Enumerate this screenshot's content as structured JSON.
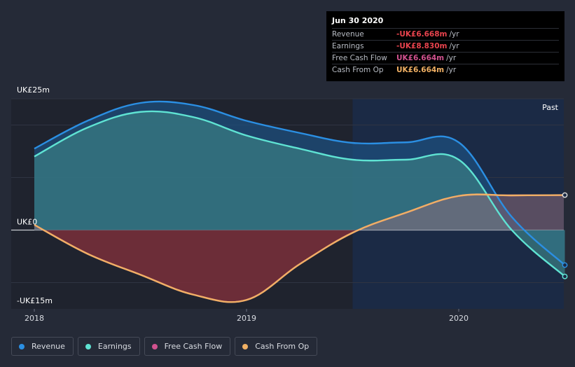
{
  "chart_data": {
    "type": "area",
    "title": "",
    "xlabel": "",
    "ylabel": "",
    "ylim": [
      -15,
      25
    ],
    "y_tick_labels": [
      {
        "value": 25,
        "label": "UK£25m"
      },
      {
        "value": 0,
        "label": "UK£0"
      },
      {
        "value": -15,
        "label": "-UK£15m"
      }
    ],
    "x_tick_labels": [
      {
        "value": 2018.0,
        "label": "2018"
      },
      {
        "value": 2019.0,
        "label": "2019"
      },
      {
        "value": 2020.0,
        "label": "2020"
      }
    ],
    "xlim": [
      2017.9,
      2020.5
    ],
    "past_label": "Past",
    "past_start": 2019.5,
    "series": [
      {
        "name": "Revenue",
        "color": "#2b8fe3",
        "points": [
          [
            2018.0,
            15.5
          ],
          [
            2018.25,
            20.8
          ],
          [
            2018.5,
            24.2
          ],
          [
            2018.75,
            23.8
          ],
          [
            2019.0,
            20.8
          ],
          [
            2019.25,
            18.5
          ],
          [
            2019.5,
            16.6
          ],
          [
            2019.75,
            16.7
          ],
          [
            2020.0,
            16.7
          ],
          [
            2020.25,
            2.5
          ],
          [
            2020.5,
            -6.668
          ]
        ]
      },
      {
        "name": "Earnings",
        "color": "#5fe3d3",
        "points": [
          [
            2018.0,
            14.0
          ],
          [
            2018.25,
            19.5
          ],
          [
            2018.5,
            22.5
          ],
          [
            2018.75,
            21.5
          ],
          [
            2019.0,
            18.0
          ],
          [
            2019.25,
            15.5
          ],
          [
            2019.5,
            13.4
          ],
          [
            2019.75,
            13.4
          ],
          [
            2020.0,
            13.4
          ],
          [
            2020.25,
            0.0
          ],
          [
            2020.5,
            -8.83
          ]
        ]
      },
      {
        "name": "Free Cash Flow",
        "color": "#d1528f",
        "points": [
          [
            2018.0,
            1.0
          ],
          [
            2018.25,
            -4.5
          ],
          [
            2018.5,
            -8.5
          ],
          [
            2018.75,
            -12.3
          ],
          [
            2019.0,
            -13.3
          ],
          [
            2019.25,
            -6.5
          ],
          [
            2019.5,
            -0.5
          ],
          [
            2019.75,
            3.3
          ],
          [
            2020.0,
            6.5
          ],
          [
            2020.25,
            6.6
          ],
          [
            2020.5,
            6.664
          ]
        ]
      },
      {
        "name": "Cash From Op",
        "color": "#f0b064",
        "points": [
          [
            2018.0,
            1.0
          ],
          [
            2018.25,
            -4.5
          ],
          [
            2018.5,
            -8.5
          ],
          [
            2018.75,
            -12.3
          ],
          [
            2019.0,
            -13.3
          ],
          [
            2019.25,
            -6.5
          ],
          [
            2019.5,
            -0.5
          ],
          [
            2019.75,
            3.3
          ],
          [
            2020.0,
            6.5
          ],
          [
            2020.25,
            6.6
          ],
          [
            2020.5,
            6.664
          ]
        ]
      }
    ]
  },
  "tooltip": {
    "date": "Jun 30 2020",
    "rows": [
      {
        "label": "Revenue",
        "value": "-UK£6.668m",
        "unit": "/yr",
        "color": "#e8434d"
      },
      {
        "label": "Earnings",
        "value": "-UK£8.830m",
        "unit": "/yr",
        "color": "#e8434d"
      },
      {
        "label": "Free Cash Flow",
        "value": "UK£6.664m",
        "unit": "/yr",
        "color": "#d1528f"
      },
      {
        "label": "Cash From Op",
        "value": "UK£6.664m",
        "unit": "/yr",
        "color": "#f0b064"
      }
    ]
  },
  "legend": [
    {
      "label": "Revenue",
      "color": "#2b8fe3"
    },
    {
      "label": "Earnings",
      "color": "#5fe3d3"
    },
    {
      "label": "Free Cash Flow",
      "color": "#d1528f"
    },
    {
      "label": "Cash From Op",
      "color": "#f0b064"
    }
  ]
}
